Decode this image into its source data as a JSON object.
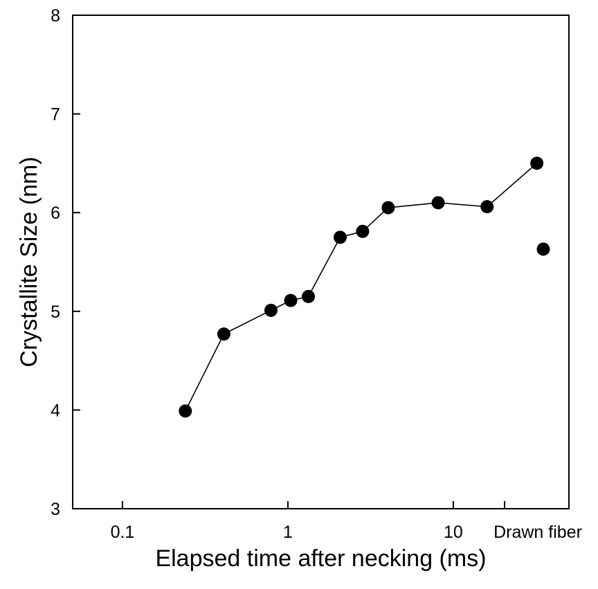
{
  "chart_data": {
    "type": "scatter",
    "title": "",
    "xlabel": "Elapsed time after necking (ms)",
    "ylabel": "Crystallite Size (nm)",
    "x_scale": "log",
    "xlim": [
      0.05,
      50
    ],
    "ylim": [
      3,
      8
    ],
    "grid": false,
    "legend": "none",
    "x_ticks": [
      {
        "value": 0.1,
        "label": "0.1"
      },
      {
        "value": 1,
        "label": "1"
      },
      {
        "value": 10,
        "label": "10"
      }
    ],
    "x_category_tick": {
      "label": "Drawn fiber"
    },
    "y_ticks": [
      {
        "value": 3,
        "label": "3"
      },
      {
        "value": 4,
        "label": "4"
      },
      {
        "value": 5,
        "label": "5"
      },
      {
        "value": 6,
        "label": "6"
      },
      {
        "value": 7,
        "label": "7"
      },
      {
        "value": 8,
        "label": "8"
      }
    ],
    "series": [
      {
        "connected": true,
        "marker": "filled-circle",
        "color": "#000000",
        "points": [
          {
            "x": 0.24,
            "y": 3.99
          },
          {
            "x": 0.41,
            "y": 4.77
          },
          {
            "x": 0.79,
            "y": 5.01
          },
          {
            "x": 1.04,
            "y": 5.11
          },
          {
            "x": 1.33,
            "y": 5.15
          },
          {
            "x": 2.07,
            "y": 5.75
          },
          {
            "x": 2.83,
            "y": 5.81
          },
          {
            "x": 4.04,
            "y": 6.05
          },
          {
            "x": 8.1,
            "y": 6.1
          },
          {
            "x": 16.0,
            "y": 6.06
          },
          {
            "x": 32.0,
            "y": 6.5
          }
        ]
      },
      {
        "connected": false,
        "marker": "filled-circle",
        "color": "#000000",
        "category": "Drawn fiber",
        "points": [
          {
            "y": 5.63
          }
        ]
      }
    ]
  }
}
